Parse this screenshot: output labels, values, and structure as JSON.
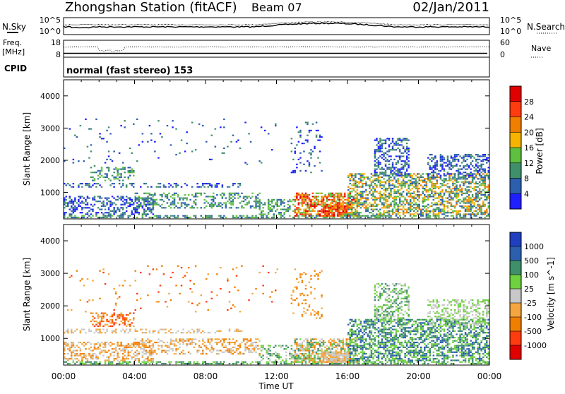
{
  "header": {
    "station": "Zhongshan Station (fitACF)",
    "beam": "Beam 07",
    "date": "02/Jan/2011"
  },
  "param_panels": {
    "nsky_label": "N.Sky",
    "nsearch_label": "N.Search",
    "noise_ticks": [
      "10^5",
      "10^0"
    ],
    "freq_label_1": "Freq.",
    "freq_label_2": "[MHz]",
    "freq_ticks": [
      "18",
      "8"
    ],
    "nave_label": "Nave",
    "nave_ticks": [
      "60",
      "0"
    ],
    "cpid_label": "CPID",
    "cpid_text": "normal (fast stereo) 153"
  },
  "colors": {
    "power": [
      "#1f1fff",
      "#2c5fae",
      "#3f8f6a",
      "#5fbf3f",
      "#f6b400",
      "#f07f00",
      "#ff3b10",
      "#e00000"
    ],
    "velocity": [
      "#e00000",
      "#ff3b10",
      "#f07f00",
      "#f3a640",
      "#c8c8c8",
      "#6fd040",
      "#3f8f6a",
      "#2c5fae",
      "#1f3fbf"
    ]
  },
  "chart_data": [
    {
      "type": "heatmap",
      "title": "Power",
      "xlabel": "Time UT",
      "ylabel": "Slant Range [km]",
      "xlim": [
        "00:00",
        "24:00"
      ],
      "x_ticks": [
        "00:00",
        "04:00",
        "08:00",
        "12:00",
        "16:00",
        "20:00",
        "00:00"
      ],
      "ylim": [
        180,
        4500
      ],
      "y_ticks": [
        1000,
        2000,
        3000,
        4000
      ],
      "colorbar_label": "Power [dB]",
      "colorbar_ticks": [
        "28",
        "24",
        "20",
        "16",
        "12",
        "8",
        "4"
      ],
      "colorbar_range": [
        0,
        32
      ]
    },
    {
      "type": "heatmap",
      "title": "Velocity",
      "xlabel": "Time UT",
      "ylabel": "Slant Range [km]",
      "xlim": [
        "00:00",
        "24:00"
      ],
      "x_ticks": [
        "00:00",
        "04:00",
        "08:00",
        "12:00",
        "16:00",
        "20:00",
        "00:00"
      ],
      "ylim": [
        180,
        4500
      ],
      "y_ticks": [
        1000,
        2000,
        3000,
        4000
      ],
      "colorbar_label": "Velocity [m s^-1]",
      "colorbar_ticks": [
        "1000",
        "500",
        "100",
        "25",
        "-25",
        "-100",
        "-500",
        "-1000"
      ]
    }
  ]
}
